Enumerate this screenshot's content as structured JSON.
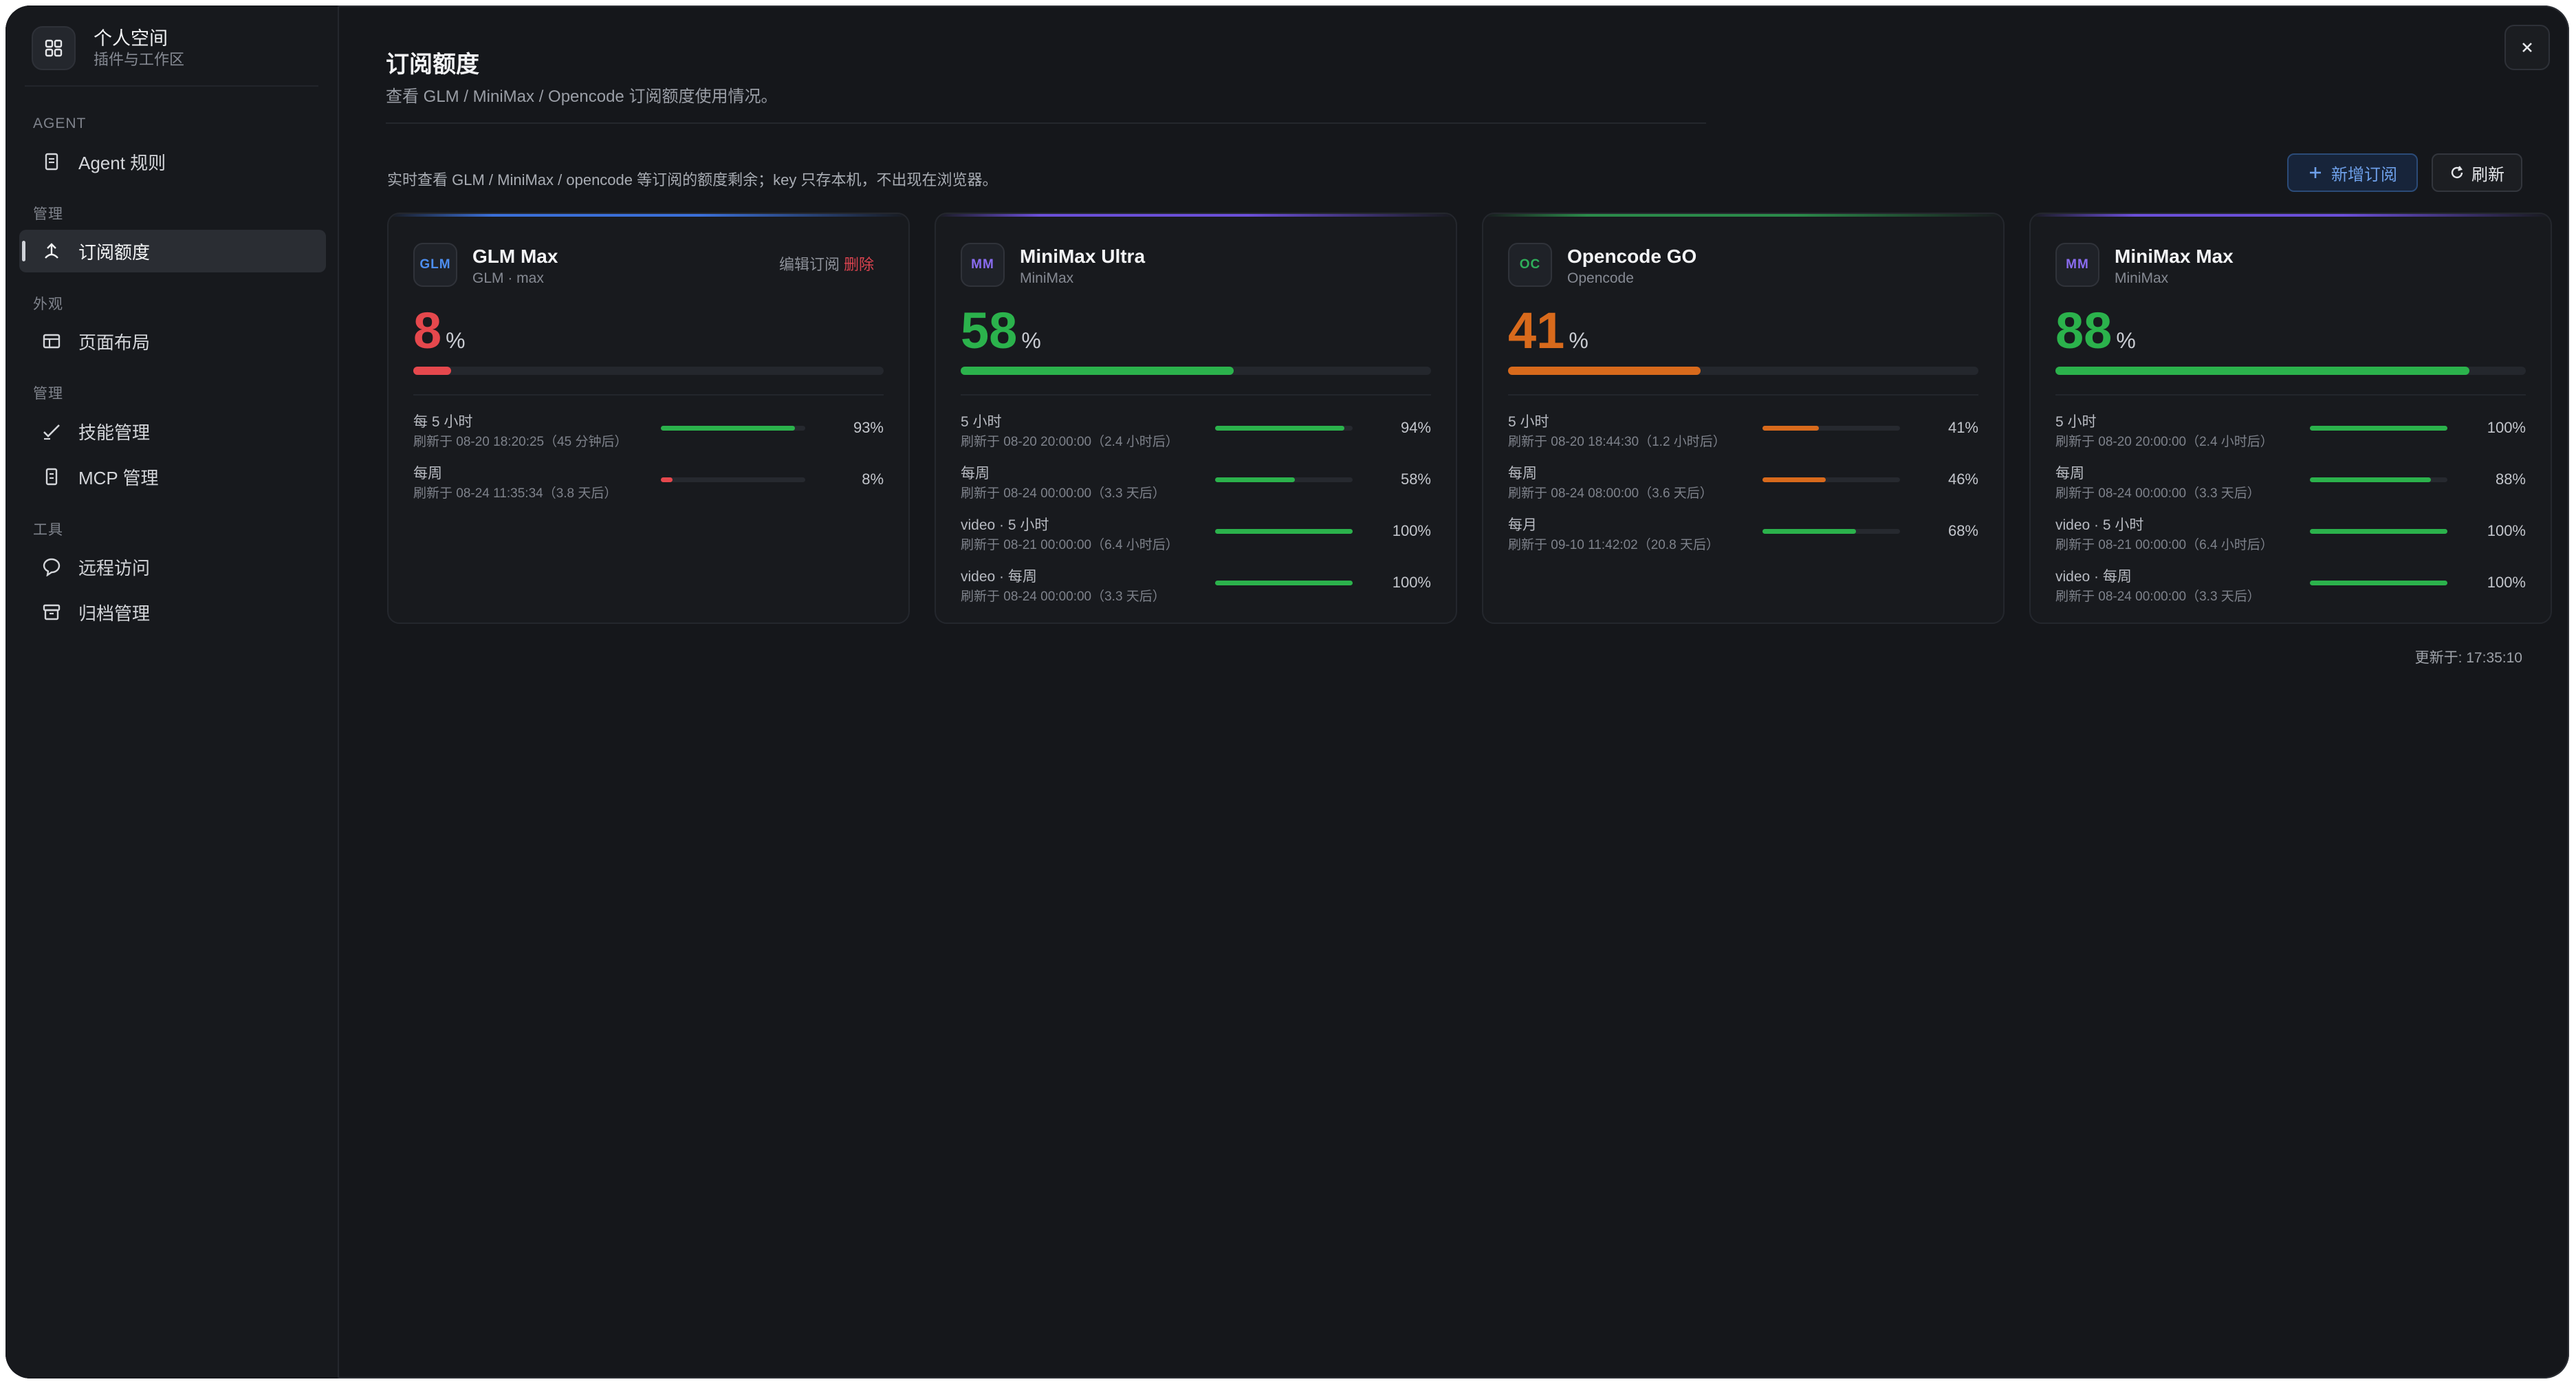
{
  "workspace": {
    "title": "个人空间",
    "subtitle": "插件与工作区",
    "icon": "grid-icon"
  },
  "sidebar": {
    "sections": [
      {
        "label": "AGENT"
      },
      {
        "label": "管理"
      },
      {
        "label": "外观"
      },
      {
        "label": "管理"
      },
      {
        "label": "工具"
      }
    ],
    "items": [
      {
        "label": "Agent 规则",
        "icon": "document-icon"
      },
      {
        "label": "订阅额度",
        "icon": "gauge-icon",
        "active": true
      },
      {
        "label": "页面布局",
        "icon": "layout-icon"
      },
      {
        "label": "技能管理",
        "icon": "check-pen-icon"
      },
      {
        "label": "MCP 管理",
        "icon": "plug-icon"
      },
      {
        "label": "远程访问",
        "icon": "chat-bubble-icon"
      },
      {
        "label": "归档管理",
        "icon": "archive-icon"
      }
    ]
  },
  "header": {
    "title": "订阅额度",
    "subtitle": "查看 GLM / MiniMax / Opencode 订阅额度使用情况。",
    "close_icon": "close-icon"
  },
  "toolbar": {
    "hint": "实时查看 GLM / MiniMax / opencode 等订阅的额度剩余；key 只存本机，不出现在浏览器。",
    "add_label": "新增订阅",
    "refresh_label": "刷新"
  },
  "colors": {
    "green": "#2bb24c",
    "red": "#e5484d",
    "orange": "#d86a1c",
    "blue_accent": "#3b82f6",
    "purple_accent": "#7c5cff"
  },
  "cards": [
    {
      "badge": "GLM",
      "badge_color": "#4d8ef0",
      "name": "GLM Max",
      "sub": "GLM · max",
      "edit_label": "编辑订阅",
      "delete_label": "删除",
      "percent": "8",
      "unit": "%",
      "value": 8,
      "color": "#e5484d",
      "accent": "#3b6fd8",
      "rows": [
        {
          "label": "每 5 小时",
          "sub": "刷新于 08-20 18:20:25（45 分钟后）",
          "pct": "93%",
          "value": 93,
          "color": "#2bb24c"
        },
        {
          "label": "每周",
          "sub": "刷新于 08-24 11:35:34（3.8 天后）",
          "pct": "8%",
          "value": 8,
          "color": "#e5484d"
        }
      ]
    },
    {
      "badge": "MM",
      "badge_color": "#8a6cf0",
      "name": "MiniMax Ultra",
      "sub": "MiniMax",
      "percent": "58",
      "unit": "%",
      "value": 58,
      "color": "#2bb24c",
      "accent": "#6b4fd8",
      "rows": [
        {
          "label": "5 小时",
          "sub": "刷新于 08-20 20:00:00（2.4 小时后）",
          "pct": "94%",
          "value": 94,
          "color": "#2bb24c"
        },
        {
          "label": "每周",
          "sub": "刷新于 08-24 00:00:00（3.3 天后）",
          "pct": "58%",
          "value": 58,
          "color": "#2bb24c"
        },
        {
          "label": "video · 5 小时",
          "sub": "刷新于 08-21 00:00:00（6.4 小时后）",
          "pct": "100%",
          "value": 100,
          "color": "#2bb24c"
        },
        {
          "label": "video · 每周",
          "sub": "刷新于 08-24 00:00:00（3.3 天后）",
          "pct": "100%",
          "value": 100,
          "color": "#2bb24c"
        }
      ]
    },
    {
      "badge": "OC",
      "badge_color": "#2fae5a",
      "name": "Opencode GO",
      "sub": "Opencode",
      "percent": "41",
      "unit": "%",
      "value": 41,
      "color": "#d86a1c",
      "accent": "#2b8a4a",
      "rows": [
        {
          "label": "5 小时",
          "sub": "刷新于 08-20 18:44:30（1.2 小时后）",
          "pct": "41%",
          "value": 41,
          "color": "#d86a1c"
        },
        {
          "label": "每周",
          "sub": "刷新于 08-24 08:00:00（3.6 天后）",
          "pct": "46%",
          "value": 46,
          "color": "#d86a1c"
        },
        {
          "label": "每月",
          "sub": "刷新于 09-10 11:42:02（20.8 天后）",
          "pct": "68%",
          "value": 68,
          "color": "#2bb24c"
        }
      ]
    },
    {
      "badge": "MM",
      "badge_color": "#8a6cf0",
      "name": "MiniMax Max",
      "sub": "MiniMax",
      "percent": "88",
      "unit": "%",
      "value": 88,
      "color": "#2bb24c",
      "accent": "#6b4fd8",
      "rows": [
        {
          "label": "5 小时",
          "sub": "刷新于 08-20 20:00:00（2.4 小时后）",
          "pct": "100%",
          "value": 100,
          "color": "#2bb24c"
        },
        {
          "label": "每周",
          "sub": "刷新于 08-24 00:00:00（3.3 天后）",
          "pct": "88%",
          "value": 88,
          "color": "#2bb24c"
        },
        {
          "label": "video · 5 小时",
          "sub": "刷新于 08-21 00:00:00（6.4 小时后）",
          "pct": "100%",
          "value": 100,
          "color": "#2bb24c"
        },
        {
          "label": "video · 每周",
          "sub": "刷新于 08-24 00:00:00（3.3 天后）",
          "pct": "100%",
          "value": 100,
          "color": "#2bb24c"
        }
      ]
    }
  ],
  "footer": {
    "updated": "更新于: 17:35:10"
  }
}
